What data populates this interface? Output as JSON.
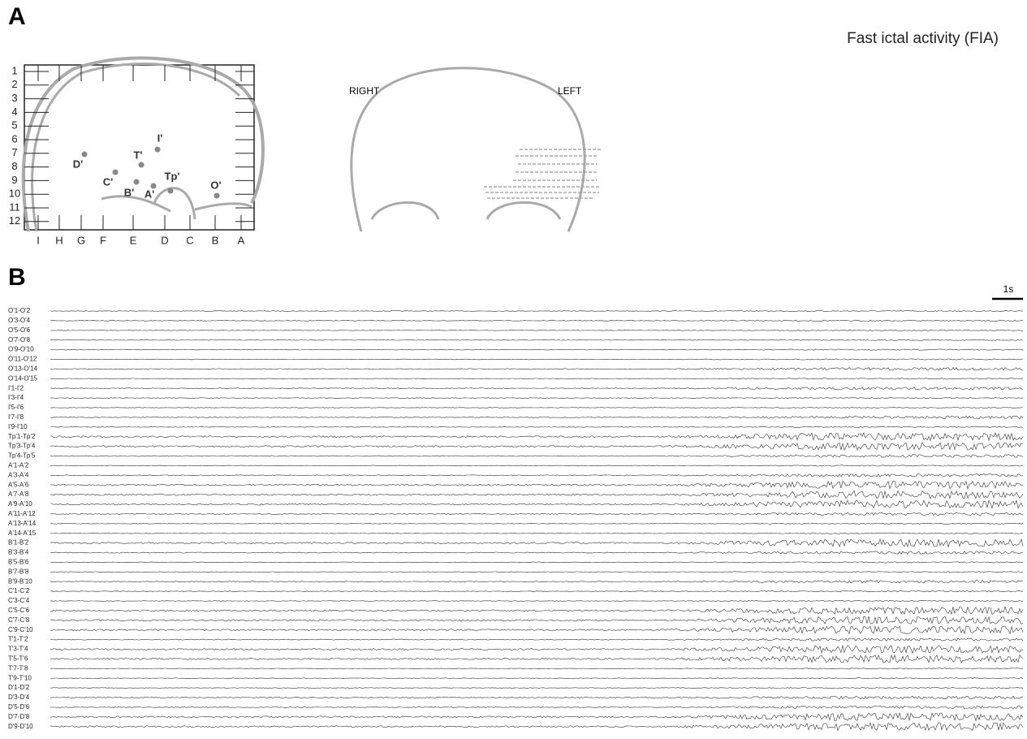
{
  "panel_a": {
    "label": "A",
    "title": "Fast ictal activity (FIA)",
    "grid_rows": [
      "1",
      "2",
      "3",
      "4",
      "5",
      "6",
      "7",
      "8",
      "9",
      "10",
      "11",
      "12"
    ],
    "grid_columns": [
      "I",
      "H",
      "G",
      "F",
      "E",
      "D",
      "C",
      "B",
      "A"
    ],
    "electrodes": [
      "I'",
      "T'",
      "D'",
      "C'",
      "B'",
      "A'",
      "Tp'",
      "O'"
    ],
    "coronal": {
      "right": "RIGHT",
      "left": "LEFT"
    }
  },
  "panel_b": {
    "label": "B",
    "scale_bar": "1s",
    "channels": [
      "O'1-O'2",
      "O'3-O'4",
      "O'5-O'6",
      "O'7-O'8",
      "O'9-O'10",
      "O'11-O'12",
      "O'13-O'14",
      "O'14-O'15",
      "I'1-I'2",
      "I'3-I'4",
      "I'5-I'6",
      "I'7-I'8",
      "I'9-I'10",
      "Tp'1-Tp'2",
      "Tp'3-Tp'4",
      "Tp'4-Tp'5",
      "A'1-A'2",
      "A'3-A'4",
      "A'5-A'6",
      "A'7-A'8",
      "A'9-A'10",
      "A'11-A'12",
      "A'13-A'14",
      "A'14-A'15",
      "B'1-B'2",
      "B'3-B'4",
      "B'5-B'6",
      "B'7-B'8",
      "B'9-B'10",
      "C'1-C'2",
      "C'3-C'4",
      "C'5-C'6",
      "C'7-C'8",
      "C'9-C'10",
      "T'1-T'2",
      "T'3-T'4",
      "T'5-T'6",
      "T'7-T'8",
      "T'9-T'10",
      "D'1-D'2",
      "D'3-D'4",
      "D'5-D'6",
      "D'7-D'8",
      "D'9-D'10"
    ]
  }
}
